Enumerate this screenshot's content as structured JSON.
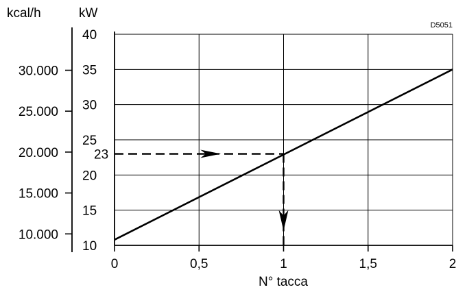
{
  "chart_data": {
    "type": "line",
    "xlabel": "N° tacca",
    "ylabel_left": "kcal/h",
    "ylabel_right": "kW",
    "code": "D5051",
    "xlim": [
      0,
      2
    ],
    "ylim": [
      10,
      40
    ],
    "x_ticks": [
      0,
      0.5,
      1,
      1.5,
      2
    ],
    "x_tick_labels": [
      "0",
      "0,5",
      "1",
      "1,5",
      "2"
    ],
    "kw_ticks": [
      10,
      15,
      20,
      25,
      30,
      35,
      40
    ],
    "kw_tick_labels": [
      "10",
      "15",
      "20",
      "25",
      "30",
      "35",
      "40"
    ],
    "kcal_ticks": [
      10000,
      15000,
      20000,
      25000,
      30000
    ],
    "kcal_tick_labels": [
      "10.000",
      "15.000",
      "20.000",
      "25.000",
      "30.000"
    ],
    "kcal_per_kw": 860,
    "grid": true,
    "series": [
      {
        "x": [
          0,
          2
        ],
        "y": [
          10.8,
          35
        ]
      }
    ],
    "annotation": {
      "x": 1,
      "y": 23,
      "label": "23"
    }
  }
}
